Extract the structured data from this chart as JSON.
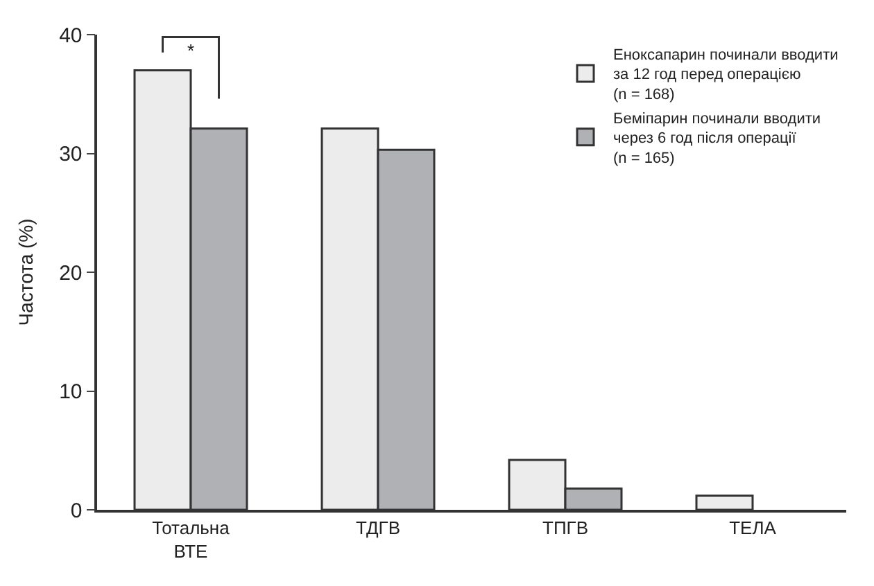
{
  "chart_data": {
    "type": "bar",
    "ylabel": "Частота (%)",
    "categories": [
      "Тотальна\nВТЕ",
      "ТДГВ",
      "ТПГВ",
      "ТЕЛА"
    ],
    "series": [
      {
        "name": "Еноксапарин починали вводити\nза 12 год перед операцією\n(n = 168)",
        "color": "#ececec",
        "values": [
          37,
          32.1,
          4.2,
          1.2
        ]
      },
      {
        "name": "Беміпарин починали вводити\nчерез 6 год після операції\n(n = 165)",
        "color": "#b0b1b4",
        "values": [
          32.1,
          30.3,
          1.8,
          0
        ]
      }
    ],
    "ylim": [
      0,
      40
    ],
    "yticks": [
      0,
      10,
      20,
      30,
      40
    ],
    "legend": "top right",
    "annotations": [
      "*"
    ]
  }
}
